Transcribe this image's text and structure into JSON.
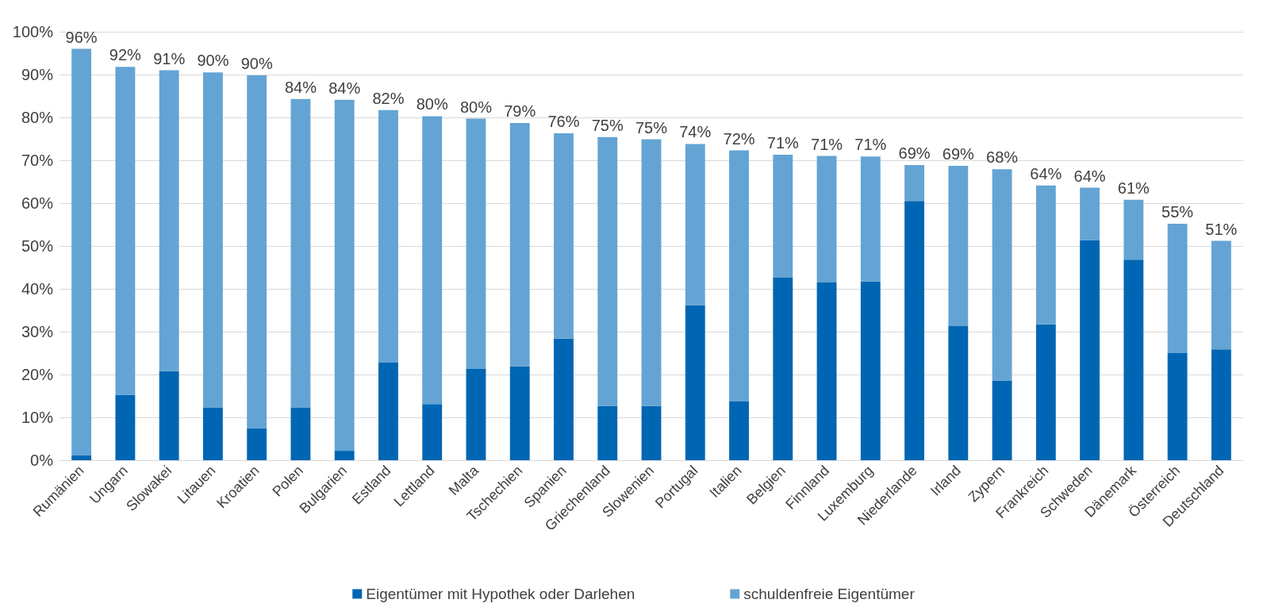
{
  "chart_data": {
    "type": "bar",
    "stacked": true,
    "categories": [
      "Rumänien",
      "Ungarn",
      "Slowakei",
      "Litauen",
      "Kroatien",
      "Polen",
      "Bulgarien",
      "Estland",
      "Lettland",
      "Malta",
      "Tschechien",
      "Spanien",
      "Griechenland",
      "Slowenien",
      "Portugal",
      "Italien",
      "Belgien",
      "Finnland",
      "Luxemburg",
      "Niederlande",
      "Irland",
      "Zypern",
      "Frankreich",
      "Schweden",
      "Dänemark",
      "Österreich",
      "Deutschland"
    ],
    "series": [
      {
        "name": "Eigentümer mit Hypothek oder Darlehen",
        "color": "#0066b3",
        "values": [
          1.1,
          15.3,
          20.8,
          12.2,
          7.5,
          12.2,
          2.2,
          22.8,
          13.1,
          21.3,
          21.9,
          28.4,
          12.7,
          12.7,
          36.2,
          13.7,
          42.6,
          41.5,
          41.7,
          60.5,
          31.3,
          18.6,
          31.7,
          51.4,
          46.8,
          25,
          25.9
        ]
      },
      {
        "name": "schuldenfreie Eigentümer",
        "color": "#64a4d4",
        "values": [
          94.9,
          76.5,
          70.2,
          78.3,
          82.3,
          72.1,
          81.9,
          58.9,
          67.2,
          58.4,
          56.8,
          47.9,
          62.7,
          62.2,
          37.6,
          58.6,
          28.7,
          29.5,
          29.2,
          8.4,
          37.4,
          49.3,
          32.4,
          12.2,
          14.0,
          30.2,
          25.3
        ]
      }
    ],
    "totals": [
      "96%",
      "92%",
      "91%",
      "90%",
      "90%",
      "84%",
      "84%",
      "82%",
      "80%",
      "80%",
      "79%",
      "76%",
      "75%",
      "75%",
      "74%",
      "72%",
      "71%",
      "71%",
      "71%",
      "69%",
      "69%",
      "68%",
      "64%",
      "64%",
      "61%",
      "55%",
      "51%"
    ],
    "ylim": [
      0,
      100
    ],
    "yticks": [
      {
        "value": 0,
        "label": "0%"
      },
      {
        "value": 10,
        "label": "10%"
      },
      {
        "value": 20,
        "label": "20%"
      },
      {
        "value": 30,
        "label": "30%"
      },
      {
        "value": 40,
        "label": "40%"
      },
      {
        "value": 50,
        "label": "50%"
      },
      {
        "value": 60,
        "label": "60%"
      },
      {
        "value": 70,
        "label": "70%"
      },
      {
        "value": 80,
        "label": "80%"
      },
      {
        "value": 90,
        "label": "90%"
      },
      {
        "value": 100,
        "label": "100%"
      }
    ],
    "grid": "y",
    "legend": "bottom"
  }
}
